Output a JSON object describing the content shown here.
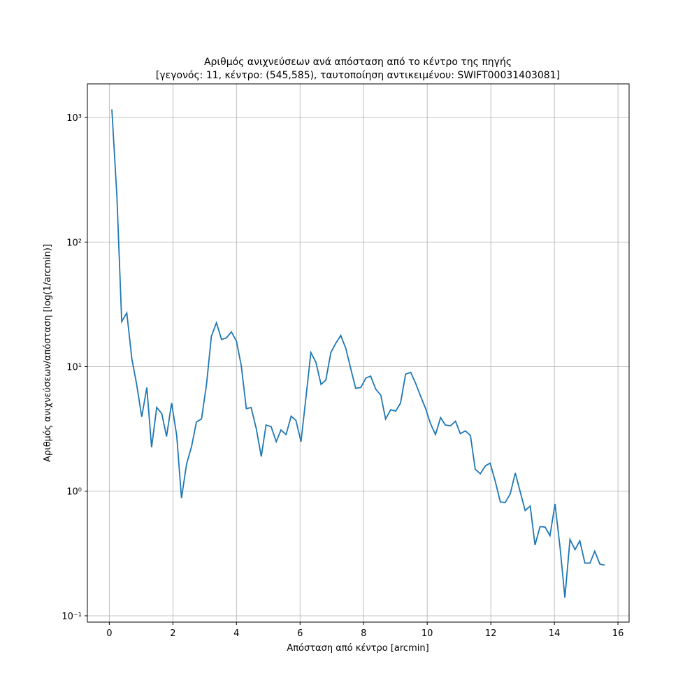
{
  "chart_data": {
    "type": "line",
    "title": "Αριθμός ανιχνεύσεων ανά απόσταση από το κέντρο της πηγής",
    "subtitle": "[γεγονός: 11, κέντρο: (545,585), ταυτοποίηση αντικειμένου: SWIFT00031403081]",
    "x_label": "Απόσταση από κέντρο [arcmin]",
    "y_label": "Αριθμός ανιχνεύσεων/απόσταση [log(1/arcmin)]",
    "log_y": true,
    "grid": true,
    "xlim": [
      -0.69,
      16.35
    ],
    "ylim": [
      0.089,
      1860
    ],
    "xticks": [
      0,
      2,
      4,
      6,
      8,
      10,
      12,
      14,
      16
    ],
    "yticks": [
      {
        "value": 0.1,
        "label": "10⁻¹"
      },
      {
        "value": 1,
        "label": "10⁰"
      },
      {
        "value": 10,
        "label": "10¹"
      },
      {
        "value": 100,
        "label": "10²"
      },
      {
        "value": 1000,
        "label": "10³"
      }
    ],
    "x": [
      0.08,
      0.24,
      0.39,
      0.55,
      0.71,
      0.86,
      1.02,
      1.18,
      1.33,
      1.49,
      1.65,
      1.8,
      1.96,
      2.12,
      2.27,
      2.43,
      2.59,
      2.74,
      2.9,
      3.06,
      3.21,
      3.37,
      3.53,
      3.68,
      3.84,
      4.0,
      4.15,
      4.31,
      4.46,
      4.62,
      4.78,
      4.93,
      5.09,
      5.25,
      5.4,
      5.56,
      5.72,
      5.87,
      6.03,
      6.19,
      6.34,
      6.5,
      6.66,
      6.81,
      6.97,
      7.13,
      7.28,
      7.44,
      7.6,
      7.75,
      7.91,
      8.07,
      8.22,
      8.38,
      8.54,
      8.69,
      8.85,
      9.01,
      9.16,
      9.32,
      9.48,
      9.63,
      9.79,
      9.95,
      10.1,
      10.26,
      10.42,
      10.57,
      10.73,
      10.89,
      11.04,
      11.2,
      11.36,
      11.51,
      11.67,
      11.83,
      11.98,
      12.14,
      12.3,
      12.45,
      12.61,
      12.77,
      12.92,
      13.08,
      13.24,
      13.39,
      13.55,
      13.71,
      13.86,
      14.02,
      14.18,
      14.33,
      14.49,
      14.65,
      14.8,
      14.96,
      15.12,
      15.27,
      15.43,
      15.58
    ],
    "series": [
      {
        "color": "#1f77b4",
        "values": [
          1160,
          230,
          23,
          27,
          11.5,
          7.2,
          3.95,
          6.8,
          2.25,
          4.7,
          4.2,
          2.75,
          5.1,
          2.8,
          0.88,
          1.65,
          2.3,
          3.6,
          3.8,
          7.3,
          17.5,
          22.5,
          16.5,
          17,
          19,
          16,
          10.2,
          4.6,
          4.7,
          3.2,
          1.9,
          3.4,
          3.3,
          2.5,
          3.1,
          2.85,
          4.0,
          3.7,
          2.5,
          5.8,
          13,
          10.8,
          7.2,
          7.8,
          13,
          15.5,
          17.8,
          14,
          9.5,
          6.7,
          6.8,
          8.1,
          8.4,
          6.6,
          5.9,
          3.8,
          4.5,
          4.4,
          5.1,
          8.7,
          9.0,
          7.4,
          5.8,
          4.6,
          3.5,
          2.85,
          3.9,
          3.4,
          3.35,
          3.65,
          2.9,
          3.05,
          2.8,
          1.5,
          1.38,
          1.6,
          1.68,
          1.2,
          0.82,
          0.81,
          0.95,
          1.4,
          1.0,
          0.7,
          0.76,
          0.37,
          0.52,
          0.515,
          0.44,
          0.79,
          0.35,
          0.14,
          0.41,
          0.34,
          0.4,
          0.265,
          0.265,
          0.33,
          0.26,
          0.255
        ]
      }
    ]
  }
}
